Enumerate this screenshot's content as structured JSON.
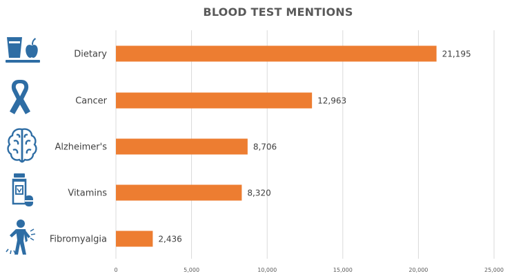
{
  "chart_data": {
    "type": "bar",
    "orientation": "horizontal",
    "title": "BLOOD TEST MENTIONS",
    "xlabel": "",
    "ylabel": "",
    "categories": [
      "Dietary",
      "Cancer",
      "Alzheimer's",
      "Vitamins",
      "Fibromyalgia"
    ],
    "values": [
      21195,
      12963,
      8706,
      8320,
      2436
    ],
    "value_labels": [
      "21,195",
      "12,963",
      "8,706",
      "8,320",
      "2,436"
    ],
    "icons": [
      "dietary-icon",
      "cancer-ribbon-icon",
      "brain-icon",
      "vitamin-bottle-icon",
      "back-pain-icon"
    ],
    "xlim": [
      0,
      25000
    ],
    "xticks": [
      0,
      5000,
      10000,
      15000,
      20000,
      25000
    ],
    "xtick_labels": [
      "0",
      "5,000",
      "10,000",
      "15,000",
      "20,000",
      "25,000"
    ],
    "grid": "vertical",
    "legend": "none",
    "colors": {
      "bar": "#ED7D31",
      "icon": "#2E6DA4",
      "grid": "#D9D9D9",
      "text": "#404040"
    }
  }
}
